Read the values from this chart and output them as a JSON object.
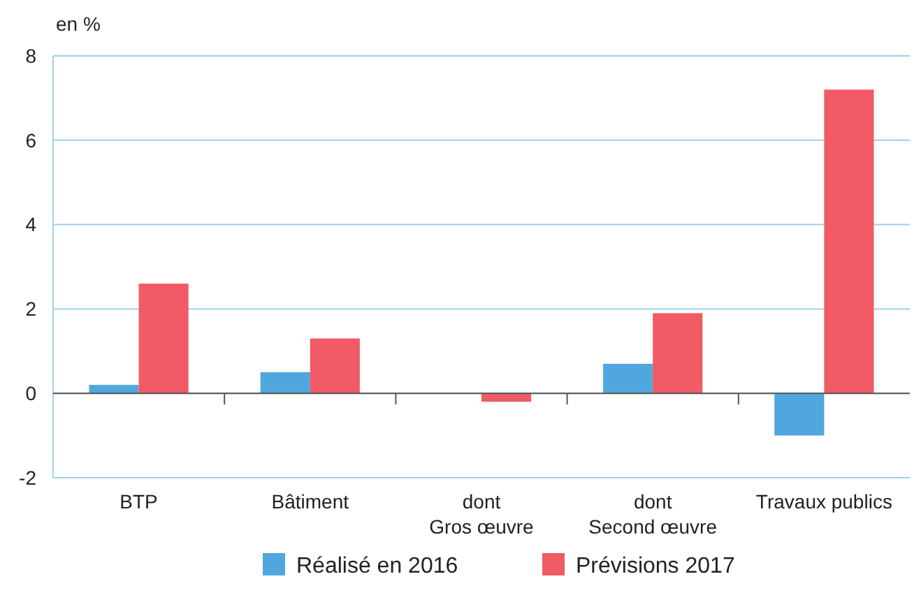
{
  "chart_data": {
    "type": "bar",
    "ylabel": "en %",
    "categories": [
      "BTP",
      "Bâtiment",
      "dont\nGros œuvre",
      "dont\nSecond œuvre",
      "Travaux publics"
    ],
    "series": [
      {
        "name": "Réalisé en 2016",
        "color": "#4fa7dd",
        "values": [
          0.2,
          0.5,
          0,
          0.7,
          -1.0
        ]
      },
      {
        "name": "Prévisions 2017",
        "color": "#f15b65",
        "values": [
          2.6,
          1.3,
          -0.2,
          1.9,
          7.2
        ]
      }
    ],
    "ylim": [
      -2,
      8
    ],
    "yticks": [
      -2,
      0,
      2,
      4,
      6,
      8
    ],
    "grid": "y",
    "legend": "bottom"
  }
}
